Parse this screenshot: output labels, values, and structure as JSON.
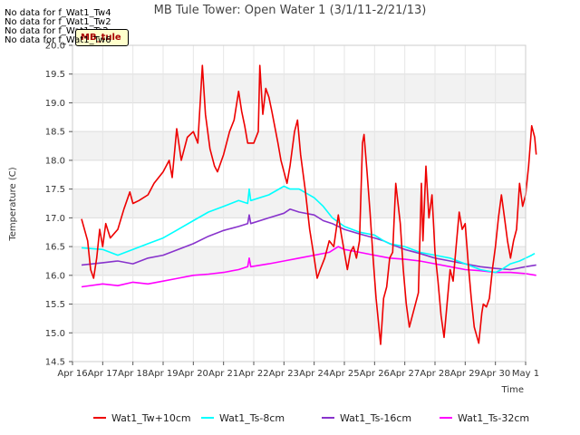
{
  "header": {
    "no_data_lines": [
      "No data for f_Wat1_Tw4",
      "No data for f_Wat1_Tw2",
      "No data for f_Wat1_Ts2",
      "No data for f_Wat1_Tw6"
    ],
    "logo_text": "MB_tule"
  },
  "chart_data": {
    "type": "line",
    "title": "MB Tule Tower: Open Water 1 (3/1/11-2/21/13)",
    "xlabel": "Time",
    "ylabel": "Temperature (C)",
    "xlim": [
      0,
      15
    ],
    "ylim": [
      14.5,
      20.0
    ],
    "x_ticks": [
      0,
      1,
      2,
      3,
      4,
      5,
      6,
      7,
      8,
      9,
      10,
      11,
      12,
      13,
      14,
      15
    ],
    "x_tick_labels": [
      "Apr 16",
      "Apr 17",
      "Apr 18",
      "Apr 19",
      "Apr 20",
      "Apr 21",
      "Apr 22",
      "Apr 23",
      "Apr 24",
      "Apr 25",
      "Apr 26",
      "Apr 27",
      "Apr 28",
      "Apr 29",
      "Apr 30",
      "May 1"
    ],
    "y_ticks": [
      14.5,
      15.0,
      15.5,
      16.0,
      16.5,
      17.0,
      17.5,
      18.0,
      18.5,
      19.0,
      19.5,
      20.0
    ],
    "y_tick_labels": [
      "14.5",
      "15.0",
      "15.5",
      "16.0",
      "16.5",
      "17.0",
      "17.5",
      "18.0",
      "18.5",
      "19.0",
      "19.5",
      "20.0"
    ],
    "legend_position": "bottom",
    "series": [
      {
        "name": "Wat1_Tw+10cm",
        "color": "#ee0000",
        "points": [
          [
            0.3,
            16.98
          ],
          [
            0.5,
            16.6
          ],
          [
            0.6,
            16.1
          ],
          [
            0.7,
            15.95
          ],
          [
            0.8,
            16.3
          ],
          [
            0.9,
            16.8
          ],
          [
            1.0,
            16.5
          ],
          [
            1.1,
            16.9
          ],
          [
            1.25,
            16.65
          ],
          [
            1.5,
            16.8
          ],
          [
            1.7,
            17.15
          ],
          [
            1.9,
            17.45
          ],
          [
            2.0,
            17.25
          ],
          [
            2.2,
            17.3
          ],
          [
            2.5,
            17.4
          ],
          [
            2.7,
            17.6
          ],
          [
            3.0,
            17.8
          ],
          [
            3.2,
            18.0
          ],
          [
            3.3,
            17.7
          ],
          [
            3.45,
            18.55
          ],
          [
            3.6,
            18.0
          ],
          [
            3.8,
            18.4
          ],
          [
            4.0,
            18.5
          ],
          [
            4.15,
            18.3
          ],
          [
            4.3,
            19.65
          ],
          [
            4.4,
            18.8
          ],
          [
            4.55,
            18.2
          ],
          [
            4.7,
            17.9
          ],
          [
            4.8,
            17.8
          ],
          [
            5.0,
            18.1
          ],
          [
            5.2,
            18.5
          ],
          [
            5.35,
            18.7
          ],
          [
            5.5,
            19.2
          ],
          [
            5.6,
            18.85
          ],
          [
            5.7,
            18.6
          ],
          [
            5.8,
            18.3
          ],
          [
            6.0,
            18.3
          ],
          [
            6.15,
            18.5
          ],
          [
            6.2,
            19.65
          ],
          [
            6.3,
            18.8
          ],
          [
            6.4,
            19.25
          ],
          [
            6.5,
            19.1
          ],
          [
            6.6,
            18.85
          ],
          [
            6.8,
            18.3
          ],
          [
            6.9,
            18.0
          ],
          [
            7.1,
            17.6
          ],
          [
            7.2,
            17.9
          ],
          [
            7.35,
            18.5
          ],
          [
            7.45,
            18.7
          ],
          [
            7.55,
            18.1
          ],
          [
            7.7,
            17.5
          ],
          [
            7.85,
            16.8
          ],
          [
            8.0,
            16.3
          ],
          [
            8.1,
            15.95
          ],
          [
            8.2,
            16.1
          ],
          [
            8.35,
            16.3
          ],
          [
            8.5,
            16.6
          ],
          [
            8.65,
            16.5
          ],
          [
            8.8,
            17.05
          ],
          [
            8.9,
            16.7
          ],
          [
            9.0,
            16.4
          ],
          [
            9.1,
            16.1
          ],
          [
            9.2,
            16.4
          ],
          [
            9.3,
            16.5
          ],
          [
            9.4,
            16.3
          ],
          [
            9.5,
            16.6
          ],
          [
            9.6,
            18.3
          ],
          [
            9.65,
            18.45
          ],
          [
            9.75,
            17.8
          ],
          [
            9.85,
            17.1
          ],
          [
            9.95,
            16.3
          ],
          [
            10.05,
            15.6
          ],
          [
            10.2,
            14.8
          ],
          [
            10.3,
            15.6
          ],
          [
            10.4,
            15.8
          ],
          [
            10.5,
            16.3
          ],
          [
            10.6,
            16.4
          ],
          [
            10.7,
            17.6
          ],
          [
            10.85,
            16.9
          ],
          [
            10.95,
            16.1
          ],
          [
            11.05,
            15.5
          ],
          [
            11.15,
            15.1
          ],
          [
            11.3,
            15.4
          ],
          [
            11.45,
            15.7
          ],
          [
            11.55,
            17.6
          ],
          [
            11.6,
            16.6
          ],
          [
            11.7,
            17.9
          ],
          [
            11.8,
            17.0
          ],
          [
            11.9,
            17.4
          ],
          [
            12.0,
            16.4
          ],
          [
            12.1,
            15.9
          ],
          [
            12.2,
            15.3
          ],
          [
            12.3,
            14.92
          ],
          [
            12.4,
            15.5
          ],
          [
            12.5,
            16.1
          ],
          [
            12.6,
            15.9
          ],
          [
            12.7,
            16.5
          ],
          [
            12.8,
            17.1
          ],
          [
            12.9,
            16.8
          ],
          [
            13.0,
            16.9
          ],
          [
            13.1,
            16.2
          ],
          [
            13.2,
            15.6
          ],
          [
            13.3,
            15.1
          ],
          [
            13.45,
            14.82
          ],
          [
            13.55,
            15.35
          ],
          [
            13.6,
            15.5
          ],
          [
            13.7,
            15.45
          ],
          [
            13.8,
            15.6
          ],
          [
            13.9,
            16.1
          ],
          [
            14.0,
            16.5
          ],
          [
            14.1,
            17.0
          ],
          [
            14.2,
            17.4
          ],
          [
            14.3,
            17.0
          ],
          [
            14.4,
            16.6
          ],
          [
            14.5,
            16.3
          ],
          [
            14.6,
            16.6
          ],
          [
            14.7,
            16.8
          ],
          [
            14.8,
            17.6
          ],
          [
            14.9,
            17.2
          ],
          [
            15.0,
            17.4
          ],
          [
            15.1,
            17.9
          ],
          [
            15.2,
            18.6
          ],
          [
            15.3,
            18.4
          ],
          [
            15.35,
            18.1
          ]
        ]
      },
      {
        "name": "Wat1_Ts-8cm",
        "color": "#00ffff",
        "points": [
          [
            0.3,
            16.48
          ],
          [
            1.0,
            16.45
          ],
          [
            1.5,
            16.35
          ],
          [
            2.0,
            16.45
          ],
          [
            2.5,
            16.55
          ],
          [
            3.0,
            16.65
          ],
          [
            3.5,
            16.8
          ],
          [
            4.0,
            16.95
          ],
          [
            4.5,
            17.1
          ],
          [
            5.0,
            17.2
          ],
          [
            5.5,
            17.3
          ],
          [
            5.8,
            17.25
          ],
          [
            5.85,
            17.5
          ],
          [
            5.9,
            17.3
          ],
          [
            6.5,
            17.4
          ],
          [
            7.0,
            17.55
          ],
          [
            7.2,
            17.5
          ],
          [
            7.5,
            17.5
          ],
          [
            8.0,
            17.35
          ],
          [
            8.3,
            17.2
          ],
          [
            8.6,
            17.0
          ],
          [
            9.0,
            16.85
          ],
          [
            9.5,
            16.75
          ],
          [
            10.0,
            16.7
          ],
          [
            10.3,
            16.6
          ],
          [
            10.5,
            16.55
          ],
          [
            11.0,
            16.5
          ],
          [
            11.5,
            16.4
          ],
          [
            12.0,
            16.35
          ],
          [
            12.5,
            16.3
          ],
          [
            13.0,
            16.2
          ],
          [
            13.5,
            16.1
          ],
          [
            14.0,
            16.05
          ],
          [
            14.2,
            16.1
          ],
          [
            14.5,
            16.2
          ],
          [
            14.8,
            16.25
          ],
          [
            15.0,
            16.3
          ],
          [
            15.2,
            16.35
          ],
          [
            15.3,
            16.38
          ]
        ]
      },
      {
        "name": "Wat1_Ts-16cm",
        "color": "#8833cc",
        "points": [
          [
            0.3,
            16.18
          ],
          [
            1.0,
            16.22
          ],
          [
            1.5,
            16.25
          ],
          [
            2.0,
            16.2
          ],
          [
            2.5,
            16.3
          ],
          [
            3.0,
            16.35
          ],
          [
            3.5,
            16.45
          ],
          [
            4.0,
            16.55
          ],
          [
            4.5,
            16.68
          ],
          [
            5.0,
            16.78
          ],
          [
            5.5,
            16.85
          ],
          [
            5.8,
            16.9
          ],
          [
            5.85,
            17.05
          ],
          [
            5.9,
            16.9
          ],
          [
            6.5,
            17.0
          ],
          [
            7.0,
            17.08
          ],
          [
            7.2,
            17.15
          ],
          [
            7.5,
            17.1
          ],
          [
            8.0,
            17.05
          ],
          [
            8.3,
            16.95
          ],
          [
            8.6,
            16.9
          ],
          [
            9.0,
            16.8
          ],
          [
            9.5,
            16.72
          ],
          [
            10.0,
            16.65
          ],
          [
            10.3,
            16.6
          ],
          [
            10.5,
            16.55
          ],
          [
            11.0,
            16.45
          ],
          [
            11.5,
            16.38
          ],
          [
            12.0,
            16.3
          ],
          [
            12.5,
            16.25
          ],
          [
            13.0,
            16.2
          ],
          [
            13.5,
            16.15
          ],
          [
            14.0,
            16.12
          ],
          [
            14.5,
            16.1
          ],
          [
            15.0,
            16.15
          ],
          [
            15.35,
            16.18
          ]
        ]
      },
      {
        "name": "Wat1_Ts-32cm",
        "color": "#ff00ff",
        "points": [
          [
            0.3,
            15.8
          ],
          [
            1.0,
            15.85
          ],
          [
            1.5,
            15.82
          ],
          [
            2.0,
            15.88
          ],
          [
            2.5,
            15.85
          ],
          [
            3.0,
            15.9
          ],
          [
            3.5,
            15.95
          ],
          [
            4.0,
            16.0
          ],
          [
            4.5,
            16.02
          ],
          [
            5.0,
            16.05
          ],
          [
            5.5,
            16.1
          ],
          [
            5.8,
            16.15
          ],
          [
            5.85,
            16.3
          ],
          [
            5.9,
            16.15
          ],
          [
            6.5,
            16.2
          ],
          [
            7.0,
            16.25
          ],
          [
            7.5,
            16.3
          ],
          [
            8.0,
            16.35
          ],
          [
            8.5,
            16.4
          ],
          [
            8.8,
            16.5
          ],
          [
            9.0,
            16.45
          ],
          [
            9.5,
            16.4
          ],
          [
            10.0,
            16.35
          ],
          [
            10.5,
            16.3
          ],
          [
            11.0,
            16.28
          ],
          [
            11.5,
            16.25
          ],
          [
            12.0,
            16.2
          ],
          [
            12.5,
            16.15
          ],
          [
            13.0,
            16.1
          ],
          [
            13.5,
            16.08
          ],
          [
            14.0,
            16.05
          ],
          [
            14.5,
            16.05
          ],
          [
            15.0,
            16.03
          ],
          [
            15.35,
            16.0
          ]
        ]
      }
    ]
  }
}
